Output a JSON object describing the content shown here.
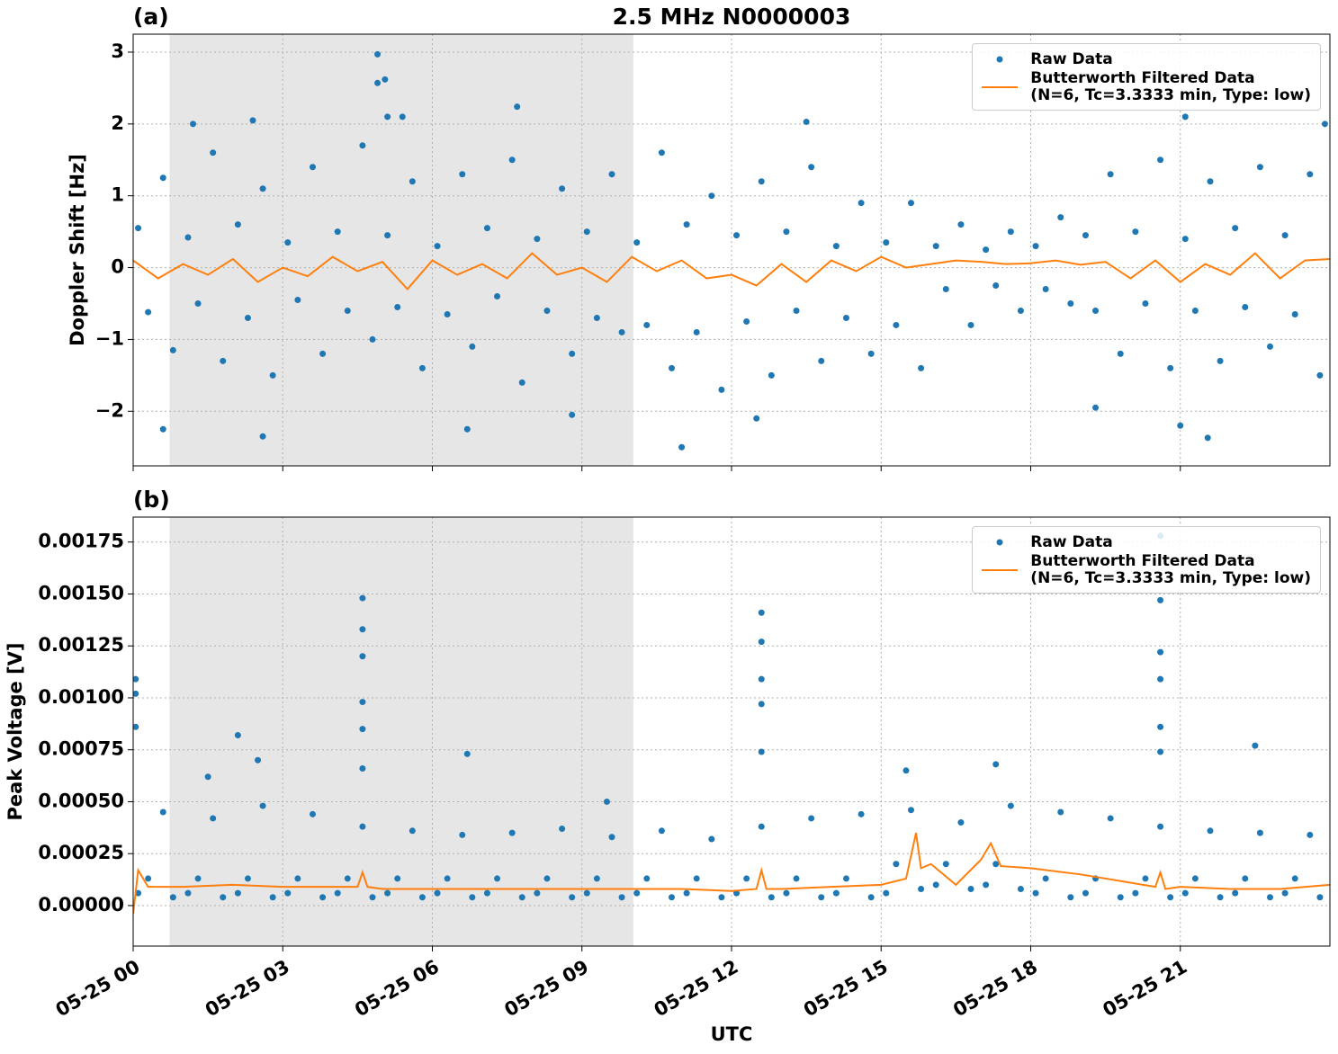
{
  "chart_data": [
    {
      "type": "scatter",
      "title": "2.5 MHz N0000003",
      "panel_label": "(a)",
      "y_label": "Doppler Shift [Hz]",
      "xlim": [
        0,
        24
      ],
      "xticks": [
        0,
        3,
        6,
        9,
        12,
        15,
        18,
        21
      ],
      "ylim": [
        -2.76,
        3.25
      ],
      "yticks": [
        {
          "value": -2,
          "label": "−2"
        },
        {
          "value": -1,
          "label": "−1"
        },
        0,
        1,
        2,
        3
      ],
      "grid": true,
      "legend": "upper right",
      "shaded_span": [
        0.73,
        10.03
      ],
      "shade_color": "#e6e6e6",
      "series": [
        {
          "name": "Raw Data",
          "style": "marker",
          "color": "#1f77b4",
          "x": [
            0.1,
            0.3,
            0.6,
            0.8,
            1.1,
            1.3,
            1.6,
            1.8,
            2.1,
            2.3,
            2.6,
            2.8,
            3.1,
            3.3,
            3.6,
            3.8,
            4.1,
            4.3,
            4.6,
            4.8,
            5.1,
            5.3,
            5.6,
            5.8,
            6.1,
            6.3,
            6.6,
            6.8,
            7.1,
            7.3,
            7.6,
            7.8,
            8.1,
            8.3,
            8.6,
            8.8,
            9.1,
            9.3,
            9.6,
            9.8,
            10.1,
            10.3,
            10.6,
            10.8,
            11.1,
            11.3,
            11.6,
            11.8,
            12.1,
            12.3,
            12.6,
            12.8,
            13.1,
            13.3,
            13.6,
            13.8,
            14.1,
            14.3,
            14.6,
            14.8,
            15.1,
            15.3,
            15.6,
            15.8,
            16.1,
            16.3,
            16.6,
            16.8,
            17.1,
            17.3,
            17.6,
            17.8,
            18.1,
            18.3,
            18.6,
            18.8,
            19.1,
            19.3,
            19.6,
            19.8,
            20.1,
            20.3,
            20.6,
            20.8,
            21.1,
            21.3,
            21.6,
            21.8,
            22.1,
            22.3,
            22.6,
            22.8,
            23.1,
            23.3,
            23.6,
            23.8,
            4.9,
            4.9,
            5.05,
            5.1,
            5.4,
            7.7,
            2.4,
            1.2,
            11.0,
            0.6,
            2.6,
            21.55,
            21.0,
            12.5,
            13.5,
            21.1,
            23.9,
            19.3,
            6.7,
            8.8
          ],
          "values": [
            0.55,
            -0.62,
            1.25,
            -1.15,
            0.42,
            -0.5,
            1.6,
            -1.3,
            0.6,
            -0.7,
            1.1,
            -1.5,
            0.35,
            -0.45,
            1.4,
            -1.2,
            0.5,
            -0.6,
            1.7,
            -1.0,
            0.45,
            -0.55,
            1.2,
            -1.4,
            0.3,
            -0.65,
            1.3,
            -1.1,
            0.55,
            -0.4,
            1.5,
            -1.6,
            0.4,
            -0.6,
            1.1,
            -1.2,
            0.5,
            -0.7,
            1.3,
            -0.9,
            0.35,
            -0.8,
            1.6,
            -1.4,
            0.6,
            -0.9,
            1.0,
            -1.7,
            0.45,
            -0.75,
            1.2,
            -1.5,
            0.5,
            -0.6,
            1.4,
            -1.3,
            0.3,
            -0.7,
            0.9,
            -1.2,
            0.35,
            -0.8,
            0.9,
            -1.4,
            0.3,
            -0.3,
            0.6,
            -0.8,
            0.25,
            -0.25,
            0.5,
            -0.6,
            0.3,
            -0.3,
            0.7,
            -0.5,
            0.45,
            -0.6,
            1.3,
            -1.2,
            0.5,
            -0.5,
            1.5,
            -1.4,
            0.4,
            -0.6,
            1.2,
            -1.3,
            0.55,
            -0.55,
            1.4,
            -1.1,
            0.45,
            -0.65,
            1.3,
            -1.5,
            2.97,
            2.57,
            2.62,
            2.1,
            2.1,
            2.24,
            2.05,
            2.0,
            -2.5,
            -2.25,
            -2.35,
            -2.37,
            -2.2,
            -2.1,
            2.03,
            2.1,
            2.0,
            -1.95,
            -2.25,
            -2.05
          ]
        },
        {
          "name": "Butterworth Filtered Data\n(N=6, Tc=3.3333 min, Type: low)",
          "style": "line",
          "color": "#ff7f0e",
          "x": [
            0,
            0.5,
            1,
            1.5,
            2,
            2.5,
            3,
            3.5,
            4,
            4.5,
            5,
            5.5,
            6,
            6.5,
            7,
            7.5,
            8,
            8.5,
            9,
            9.5,
            10,
            10.5,
            11,
            11.5,
            12,
            12.5,
            13,
            13.5,
            14,
            14.5,
            15,
            15.5,
            16,
            16.5,
            17,
            17.5,
            18,
            18.5,
            19,
            19.5,
            20,
            20.5,
            21,
            21.5,
            22,
            22.5,
            23,
            23.5,
            24
          ],
          "values": [
            0.1,
            -0.15,
            0.05,
            -0.1,
            0.12,
            -0.2,
            0.0,
            -0.12,
            0.15,
            -0.05,
            0.08,
            -0.3,
            0.1,
            -0.1,
            0.05,
            -0.15,
            0.2,
            -0.1,
            0.0,
            -0.2,
            0.15,
            -0.05,
            0.1,
            -0.15,
            -0.1,
            -0.25,
            0.05,
            -0.2,
            0.1,
            -0.05,
            0.15,
            0.0,
            0.05,
            0.1,
            0.08,
            0.05,
            0.06,
            0.1,
            0.04,
            0.08,
            -0.15,
            0.1,
            -0.2,
            0.05,
            -0.1,
            0.2,
            -0.15,
            0.1,
            0.12
          ]
        }
      ]
    },
    {
      "type": "scatter",
      "panel_label": "(b)",
      "y_label": "Peak Voltage [V]",
      "x_label": "UTC",
      "xlim": [
        0,
        24
      ],
      "xticks": [
        {
          "value": 0,
          "label": "05-25 00"
        },
        {
          "value": 3,
          "label": "05-25 03"
        },
        {
          "value": 6,
          "label": "05-25 06"
        },
        {
          "value": 9,
          "label": "05-25 09"
        },
        {
          "value": 12,
          "label": "05-25 12"
        },
        {
          "value": 15,
          "label": "05-25 15"
        },
        {
          "value": 18,
          "label": "05-25 18"
        },
        {
          "value": 21,
          "label": "05-25 21"
        }
      ],
      "ylim": [
        -0.000195,
        0.00187
      ],
      "yticks": [
        {
          "value": 0,
          "label": "0.00000"
        },
        {
          "value": 0.00025,
          "label": "0.00025"
        },
        {
          "value": 0.0005,
          "label": "0.00050"
        },
        {
          "value": 0.00075,
          "label": "0.00075"
        },
        {
          "value": 0.001,
          "label": "0.00100"
        },
        {
          "value": 0.00125,
          "label": "0.00125"
        },
        {
          "value": 0.0015,
          "label": "0.00150"
        },
        {
          "value": 0.00175,
          "label": "0.00175"
        }
      ],
      "grid": true,
      "legend": "upper right",
      "shaded_span": [
        0.73,
        10.03
      ],
      "shade_color": "#e6e6e6",
      "series": [
        {
          "name": "Raw Data",
          "style": "marker",
          "color": "#1f77b4",
          "x": [
            0.1,
            0.3,
            0.6,
            0.8,
            1.1,
            1.3,
            1.6,
            1.8,
            2.1,
            2.3,
            2.6,
            2.8,
            3.1,
            3.3,
            3.6,
            3.8,
            4.1,
            4.3,
            4.6,
            4.8,
            5.1,
            5.3,
            5.6,
            5.8,
            6.1,
            6.3,
            6.6,
            6.8,
            7.1,
            7.3,
            7.6,
            7.8,
            8.1,
            8.3,
            8.6,
            8.8,
            9.1,
            9.3,
            9.6,
            9.8,
            10.1,
            10.3,
            10.6,
            10.8,
            11.1,
            11.3,
            11.6,
            11.8,
            12.1,
            12.3,
            12.6,
            12.8,
            13.1,
            13.3,
            13.6,
            13.8,
            14.1,
            14.3,
            14.6,
            14.8,
            15.1,
            15.3,
            15.6,
            15.8,
            16.1,
            16.3,
            16.6,
            16.8,
            17.1,
            17.3,
            17.6,
            17.8,
            18.1,
            18.3,
            18.6,
            18.8,
            19.1,
            19.3,
            19.6,
            19.8,
            20.1,
            20.3,
            20.6,
            20.8,
            21.1,
            21.3,
            21.6,
            21.8,
            22.1,
            22.3,
            22.6,
            22.8,
            23.1,
            23.3,
            23.6,
            23.8,
            0.05,
            0.05,
            0.05,
            4.6,
            4.6,
            4.6,
            4.6,
            4.6,
            4.6,
            12.6,
            12.6,
            12.6,
            12.6,
            12.6,
            20.6,
            20.6,
            20.6,
            20.6,
            20.6,
            20.6,
            2.1,
            6.7,
            22.5,
            1.5,
            2.5,
            15.5,
            17.3,
            9.5
          ],
          "values": [
            6e-05,
            0.00013,
            0.00045,
            4e-05,
            6e-05,
            0.00013,
            0.00042,
            4e-05,
            6e-05,
            0.00013,
            0.00048,
            4e-05,
            6e-05,
            0.00013,
            0.00044,
            4e-05,
            6e-05,
            0.00013,
            0.00038,
            4e-05,
            6e-05,
            0.00013,
            0.00036,
            4e-05,
            6e-05,
            0.00013,
            0.00034,
            4e-05,
            6e-05,
            0.00013,
            0.00035,
            4e-05,
            6e-05,
            0.00013,
            0.00037,
            4e-05,
            6e-05,
            0.00013,
            0.00033,
            4e-05,
            6e-05,
            0.00013,
            0.00036,
            4e-05,
            6e-05,
            0.00013,
            0.00032,
            4e-05,
            6e-05,
            0.00013,
            0.00038,
            4e-05,
            6e-05,
            0.00013,
            0.00042,
            4e-05,
            6e-05,
            0.00013,
            0.00044,
            4e-05,
            6e-05,
            0.0002,
            0.00046,
            8e-05,
            0.0001,
            0.0002,
            0.0004,
            8e-05,
            0.0001,
            0.0002,
            0.00048,
            8e-05,
            6e-05,
            0.00013,
            0.00045,
            4e-05,
            6e-05,
            0.00013,
            0.00042,
            4e-05,
            6e-05,
            0.00013,
            0.00038,
            4e-05,
            6e-05,
            0.00013,
            0.00036,
            4e-05,
            6e-05,
            0.00013,
            0.00035,
            4e-05,
            6e-05,
            0.00013,
            0.00034,
            4e-05,
            0.00109,
            0.00102,
            0.00086,
            0.00148,
            0.00133,
            0.0012,
            0.00098,
            0.00085,
            0.00066,
            0.00141,
            0.00127,
            0.00109,
            0.00097,
            0.00074,
            0.00178,
            0.00147,
            0.00122,
            0.00109,
            0.00086,
            0.00074,
            0.00082,
            0.00073,
            0.00077,
            0.00062,
            0.0007,
            0.00065,
            0.00068,
            0.0005
          ]
        },
        {
          "name": "Butterworth Filtered Data\n(N=6, Tc=3.3333 min, Type: low)",
          "style": "line",
          "color": "#ff7f0e",
          "x": [
            0,
            0.1,
            0.3,
            1,
            2,
            3,
            4,
            4.5,
            4.6,
            4.7,
            5,
            6,
            7,
            8,
            9,
            10,
            11,
            12,
            12.5,
            12.6,
            12.7,
            13,
            14,
            15,
            15.5,
            15.7,
            15.8,
            16,
            16.5,
            17,
            17.2,
            17.4,
            18,
            19,
            20,
            20.5,
            20.6,
            20.7,
            21,
            22,
            23,
            24
          ],
          "values": [
            -4e-05,
            0.00017,
            9e-05,
            9e-05,
            0.0001,
            9e-05,
            9e-05,
            9e-05,
            0.00016,
            9e-05,
            8e-05,
            8e-05,
            8e-05,
            8e-05,
            8e-05,
            8e-05,
            8e-05,
            7e-05,
            8e-05,
            0.00017,
            8e-05,
            8e-05,
            9e-05,
            0.0001,
            0.00013,
            0.00035,
            0.00018,
            0.0002,
            0.0001,
            0.00022,
            0.0003,
            0.00019,
            0.00018,
            0.00015,
            0.00011,
            9e-05,
            0.00016,
            8e-05,
            9e-05,
            8e-05,
            8e-05,
            0.0001
          ]
        }
      ]
    }
  ]
}
